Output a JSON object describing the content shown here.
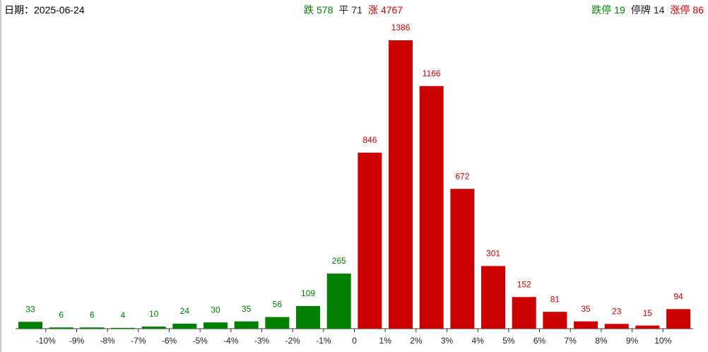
{
  "header": {
    "date": "日期：2025-06-24",
    "center": [
      {
        "label": "跌",
        "value": 578,
        "color": "#008000"
      },
      {
        "label": "平",
        "value": 71,
        "color": "#222222"
      },
      {
        "label": "涨",
        "value": 4767,
        "color": "#cc0000"
      }
    ],
    "right": [
      {
        "label": "跌停",
        "value": 19,
        "color": "#008000"
      },
      {
        "label": "停牌",
        "value": 14,
        "color": "#222222"
      },
      {
        "label": "涨停",
        "value": 86,
        "color": "#cc0000"
      }
    ]
  },
  "chart_data": {
    "type": "histogram",
    "bins": [
      null,
      {
        "value": -10,
        "label": "-10%"
      },
      {
        "value": -9,
        "label": "-9%"
      },
      {
        "value": -8,
        "label": "-8%"
      },
      {
        "value": -7,
        "label": "-7%"
      },
      {
        "value": -6,
        "label": "-6%"
      },
      {
        "value": -5,
        "label": "-5%"
      },
      {
        "value": -4,
        "label": "-4%"
      },
      {
        "value": -3,
        "label": "-3%"
      },
      {
        "value": -2,
        "label": "-2%"
      },
      {
        "value": -1,
        "label": "-1%"
      },
      0,
      {
        "value": 1,
        "label": "1%"
      },
      {
        "value": 2,
        "label": "2%"
      },
      {
        "value": 3,
        "label": "3%"
      },
      {
        "value": 4,
        "label": "4%"
      },
      {
        "value": 5,
        "label": "5%"
      },
      {
        "value": 6,
        "label": "6%"
      },
      {
        "value": 7,
        "label": "7%"
      },
      {
        "value": 8,
        "label": "8%"
      },
      {
        "value": 9,
        "label": "9%"
      },
      {
        "value": 10,
        "label": "10%"
      },
      null
    ],
    "values": [
      33,
      6,
      6,
      4,
      10,
      24,
      30,
      35,
      56,
      109,
      265,
      846,
      1386,
      1166,
      672,
      301,
      152,
      81,
      35,
      23,
      15,
      94
    ],
    "colors": {
      "down": "#008000",
      "up": "#cc0000"
    }
  }
}
